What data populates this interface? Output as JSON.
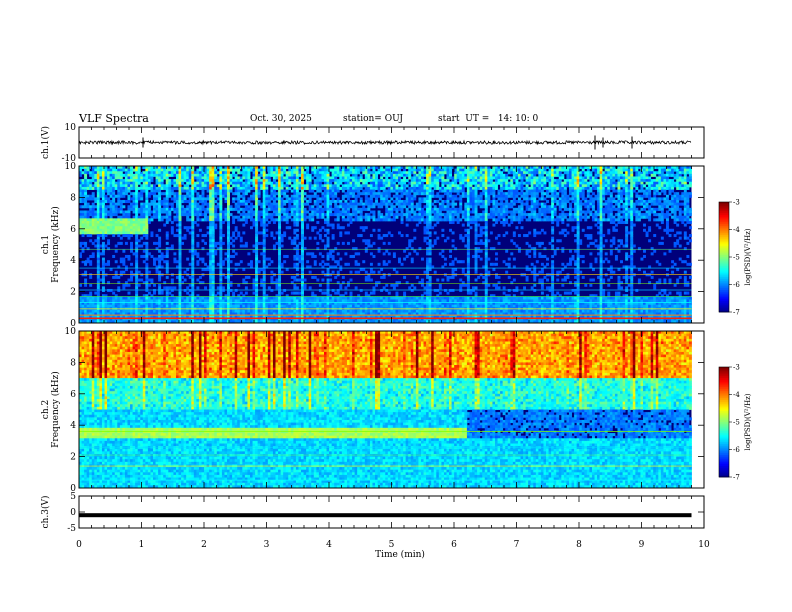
{
  "header": {
    "title": "VLF Spectra",
    "date": "Oct. 30, 2025",
    "station": "station= OUJ",
    "start": "start  UT =   14: 10: 0"
  },
  "chart_data": {
    "type": "heatmap",
    "title": "VLF Spectra",
    "xlabel": "Time  (min)",
    "xlim": [
      0,
      10
    ],
    "xticks": [
      "0",
      "1",
      "2",
      "3",
      "4",
      "5",
      "6",
      "7",
      "8",
      "9",
      "10"
    ],
    "data_end_min": 9.8,
    "panels": [
      {
        "id": "ch1-waveform",
        "kind": "waveform",
        "ylabel": "ch.1(V)",
        "ylim": [
          -10,
          10
        ],
        "yticks": [
          "10",
          "-10"
        ],
        "baseline": 0
      },
      {
        "id": "ch1-spectrogram",
        "kind": "spectrogram",
        "ylabel_line1": "ch.1",
        "ylabel_line2": "Frequency (kHz)",
        "ylim": [
          0,
          10
        ],
        "yticks": [
          "0",
          "2",
          "4",
          "6",
          "8",
          "10"
        ],
        "colorbar": {
          "range": [
            -7,
            -3
          ],
          "ticks": [
            "-3",
            "-4",
            "-5",
            "-6",
            "-7"
          ],
          "label": "log(PSD)(V²/Hz)"
        }
      },
      {
        "id": "ch2-spectrogram",
        "kind": "spectrogram",
        "ylabel_line1": "ch.2",
        "ylabel_line2": "Frequency (kHz)",
        "ylim": [
          0,
          10
        ],
        "yticks": [
          "0",
          "2",
          "4",
          "6",
          "8",
          "10"
        ],
        "colorbar": {
          "range": [
            -7,
            -3
          ],
          "ticks": [
            "-3",
            "-4",
            "-5",
            "-6",
            "-7"
          ],
          "label": "log(PSD)(V²/Hz)"
        }
      },
      {
        "id": "ch3-waveform",
        "kind": "waveform",
        "ylabel": "ch.3(V)",
        "ylim": [
          -5,
          5
        ],
        "yticks": [
          "5",
          "0",
          "-5"
        ],
        "baseline": -1
      }
    ]
  }
}
